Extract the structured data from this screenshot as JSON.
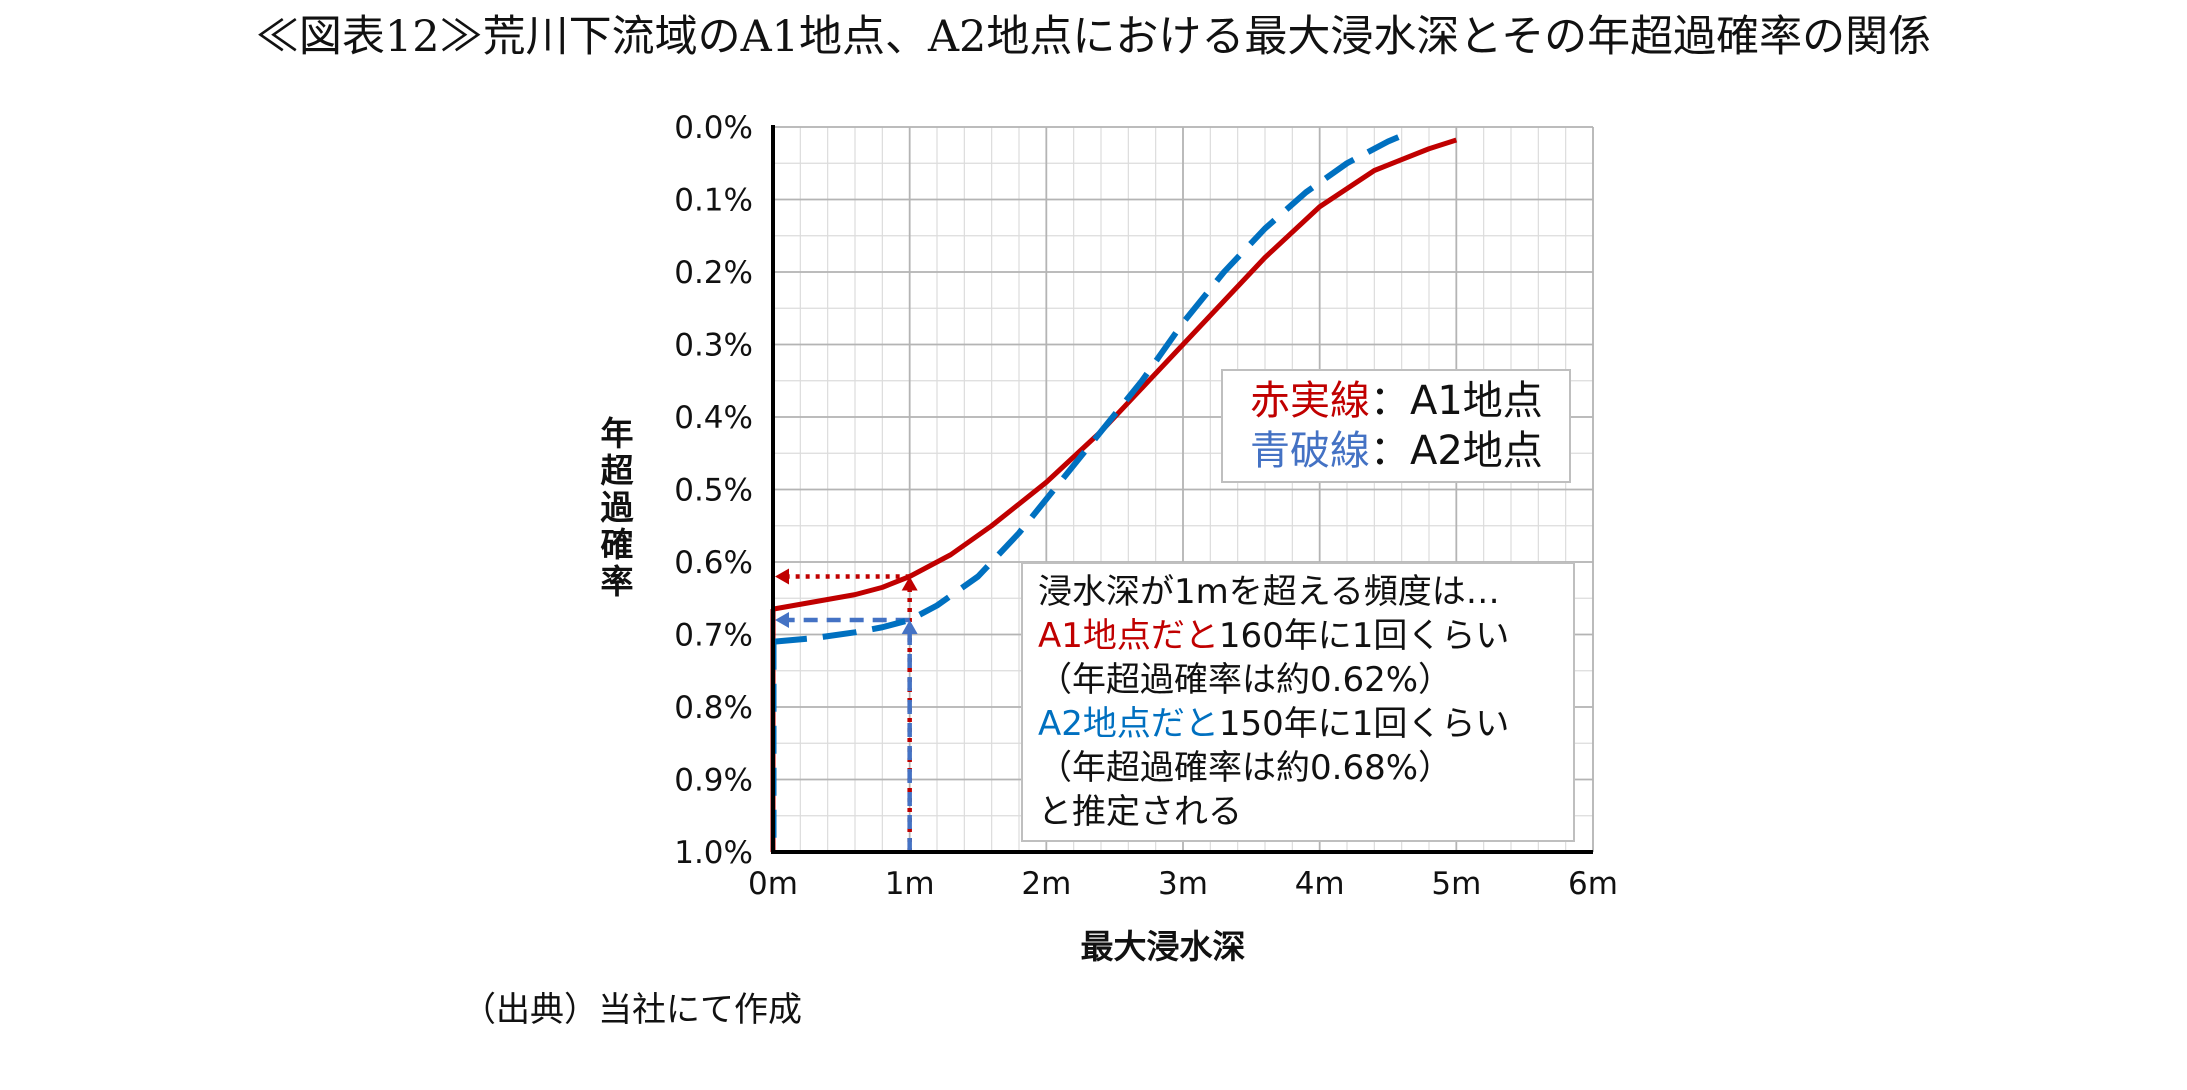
{
  "title": "≪図表12≫荒川下流域のA1地点、A2地点における最大浸水深とその年超過確率の関係",
  "source": "（出典）当社にて作成",
  "colors": {
    "red": "#c00000",
    "blue": "#0070c0",
    "blue_light": "#4472c4",
    "grid": "#c8c8c8"
  },
  "chart_data": {
    "type": "line",
    "xlabel": "最大浸水深",
    "ylabel": "年超過確率",
    "xlim": [
      0,
      6
    ],
    "ylim": [
      1.0,
      0.0
    ],
    "y_inverted": true,
    "x_ticks": [
      "0m",
      "1m",
      "2m",
      "3m",
      "4m",
      "5m",
      "6m"
    ],
    "y_ticks": [
      "0.0%",
      "0.1%",
      "0.2%",
      "0.3%",
      "0.4%",
      "0.5%",
      "0.6%",
      "0.7%",
      "0.8%",
      "0.9%",
      "1.0%"
    ],
    "grid": true,
    "series": [
      {
        "name": "A1地点",
        "style": "solid",
        "color": "#c00000",
        "x": [
          0.0,
          0.3,
          0.6,
          0.8,
          1.0,
          1.3,
          1.6,
          2.0,
          2.4,
          2.8,
          3.2,
          3.6,
          4.0,
          4.4,
          4.8,
          5.0
        ],
        "y": [
          0.665,
          0.655,
          0.645,
          0.635,
          0.62,
          0.59,
          0.55,
          0.49,
          0.42,
          0.34,
          0.26,
          0.18,
          0.11,
          0.06,
          0.03,
          0.018
        ]
      },
      {
        "name": "A2地点",
        "style": "dashed",
        "color": "#0070c0",
        "x": [
          0.0,
          0.3,
          0.6,
          0.8,
          1.0,
          1.2,
          1.5,
          1.8,
          2.1,
          2.4,
          2.7,
          3.0,
          3.3,
          3.6,
          3.9,
          4.2,
          4.5,
          4.6
        ],
        "y": [
          0.71,
          0.705,
          0.697,
          0.69,
          0.68,
          0.66,
          0.62,
          0.56,
          0.49,
          0.42,
          0.35,
          0.27,
          0.2,
          0.14,
          0.09,
          0.05,
          0.02,
          0.012
        ]
      }
    ],
    "reference_lines": [
      {
        "series": "A1地点",
        "x": 1.0,
        "y": 0.62,
        "color": "#c00000",
        "style": "dotted"
      },
      {
        "series": "A2地点",
        "x": 1.0,
        "y": 0.68,
        "color": "#4472c4",
        "style": "dashed"
      }
    ],
    "legend": {
      "placement": "center-right",
      "entries": [
        {
          "colored": "赤実線",
          "rest": "：A1地点",
          "color": "#c00000"
        },
        {
          "colored": "青破線",
          "rest": "：A2地点",
          "color": "#4472c4"
        }
      ]
    },
    "annotation": {
      "lines": [
        {
          "colored": "",
          "rest": "浸水深が1mを超える頻度は…",
          "color": "#111111"
        },
        {
          "colored": "A1地点だと",
          "rest": "160年に1回くらい",
          "color": "#c00000"
        },
        {
          "colored": "",
          "rest": "（年超過確率は約0.62%）",
          "color": "#111111"
        },
        {
          "colored": "A2地点だと",
          "rest": "150年に1回くらい",
          "color": "#0070c0"
        },
        {
          "colored": "",
          "rest": "（年超過確率は約0.68%）",
          "color": "#111111"
        },
        {
          "colored": "",
          "rest": "と推定される",
          "color": "#111111"
        }
      ]
    }
  }
}
